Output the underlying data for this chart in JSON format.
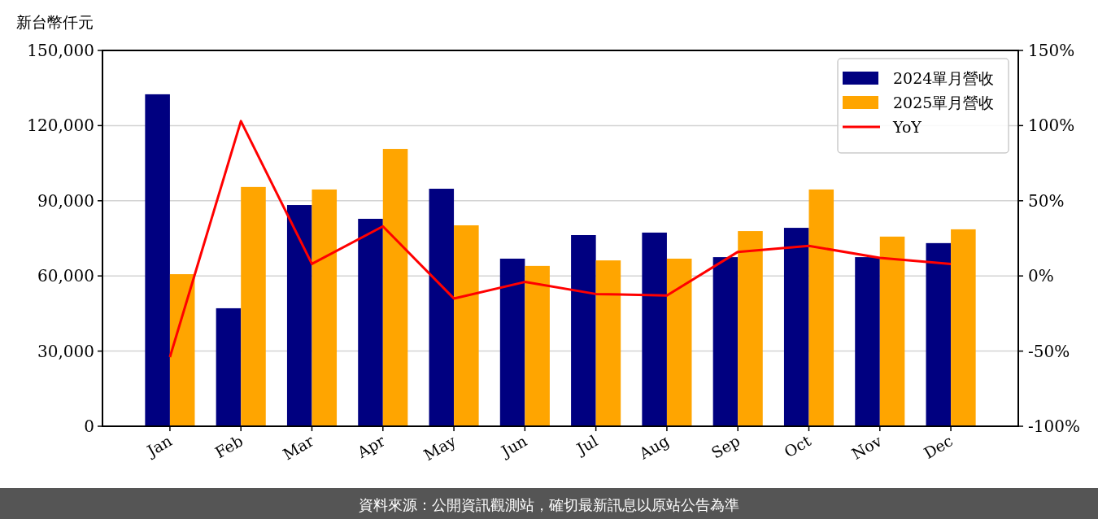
{
  "chart_data": {
    "type": "bar",
    "ylabel": "新台幣仟元",
    "categories": [
      "Jan",
      "Feb",
      "Mar",
      "Apr",
      "May",
      "Jun",
      "Jul",
      "Aug",
      "Sep",
      "Oct",
      "Nov",
      "Dec"
    ],
    "series": [
      {
        "name": "2024單月營收",
        "color": "#000080",
        "values": [
          132500,
          47100,
          88300,
          82800,
          94800,
          66900,
          76300,
          77300,
          67500,
          79200,
          67500,
          73100
        ]
      },
      {
        "name": "2025單月營收",
        "color": "#ffa500",
        "values": [
          60700,
          95500,
          94500,
          110700,
          80200,
          64000,
          66200,
          66900,
          77900,
          94500,
          75700,
          78600
        ]
      },
      {
        "name": "YoY",
        "type": "line",
        "axis": "y2",
        "color": "#ff0000",
        "values": [
          -54,
          103,
          8,
          33,
          -15,
          -4,
          -12,
          -13,
          16,
          20,
          12,
          8
        ]
      }
    ],
    "ylim": [
      0,
      150000
    ],
    "yticks": [
      {
        "value": 0,
        "label": "0"
      },
      {
        "value": 30000,
        "label": "30,000"
      },
      {
        "value": 60000,
        "label": "60,000"
      },
      {
        "value": 90000,
        "label": "90,000"
      },
      {
        "value": 120000,
        "label": "120,000"
      },
      {
        "value": 150000,
        "label": "150,000"
      }
    ],
    "y2lim": [
      -100,
      150
    ],
    "y2ticks": [
      {
        "value": -100,
        "label": "-100%"
      },
      {
        "value": -50,
        "label": "-50%"
      },
      {
        "value": 0,
        "label": "0%"
      },
      {
        "value": 50,
        "label": "50%"
      },
      {
        "value": 100,
        "label": "100%"
      },
      {
        "value": 150,
        "label": "150%"
      }
    ],
    "grid": "y",
    "legend": "top right",
    "annotations": [
      "資料來源：公開資訊觀測站，確切最新訊息以原站公告為準"
    ]
  }
}
